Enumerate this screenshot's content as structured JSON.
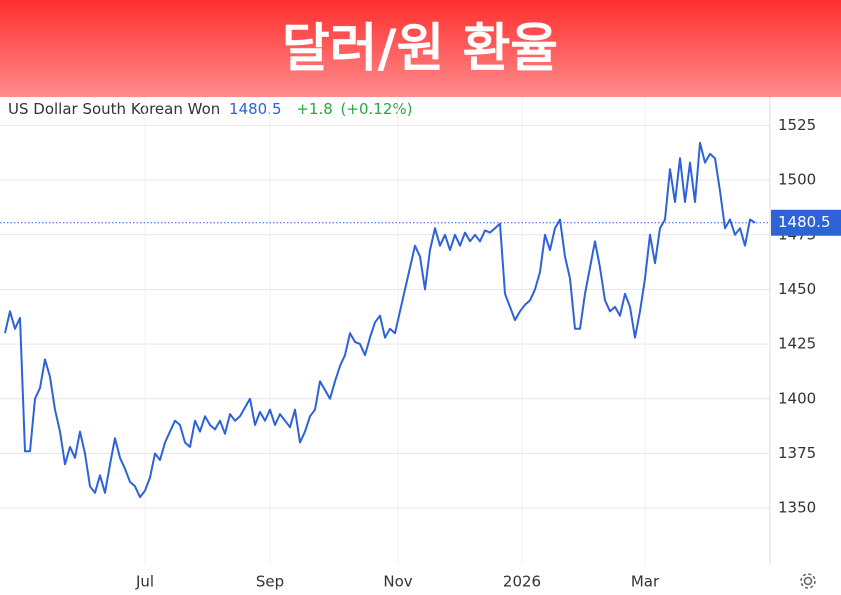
{
  "chart_data": {
    "type": "line",
    "title": "달러/원 환율",
    "instrument": "US Dollar South Korean Won",
    "price": "1480.5",
    "change": "+1.8",
    "change_pct": "(+0.12%)",
    "last_value": 1480.5,
    "series": [
      {
        "name": "US Dollar South Korean Won",
        "color": "#2d62d8",
        "values": [
          1430,
          1440,
          1432,
          1437,
          1376,
          1376,
          1400,
          1405,
          1418,
          1410,
          1395,
          1385,
          1370,
          1378,
          1373,
          1385,
          1375,
          1360,
          1357,
          1365,
          1357,
          1370,
          1382,
          1373,
          1368,
          1362,
          1360,
          1355,
          1358,
          1364,
          1375,
          1372,
          1380,
          1385,
          1390,
          1388,
          1380,
          1378,
          1390,
          1385,
          1392,
          1388,
          1386,
          1390,
          1384,
          1393,
          1390,
          1392,
          1396,
          1400,
          1388,
          1394,
          1390,
          1395,
          1388,
          1393,
          1390,
          1387,
          1395,
          1380,
          1385,
          1392,
          1395,
          1408,
          1404,
          1400,
          1408,
          1415,
          1420,
          1430,
          1426,
          1425,
          1420,
          1428,
          1435,
          1438,
          1428,
          1432,
          1430,
          1440,
          1450,
          1460,
          1470,
          1465,
          1450,
          1468,
          1478,
          1470,
          1475,
          1468,
          1475,
          1470,
          1476,
          1472,
          1475,
          1472,
          1477,
          1476,
          1478,
          1480,
          1448,
          1442,
          1436,
          1440,
          1443,
          1445,
          1450,
          1458,
          1475,
          1468,
          1478,
          1482,
          1465,
          1455,
          1432,
          1432,
          1448,
          1460,
          1472,
          1460,
          1445,
          1440,
          1442,
          1438,
          1448,
          1442,
          1428,
          1440,
          1455,
          1475,
          1462,
          1478,
          1482,
          1505,
          1490,
          1510,
          1490,
          1508,
          1490,
          1517,
          1508,
          1512,
          1510,
          1495,
          1478,
          1482,
          1475,
          1478,
          1470,
          1482,
          1480.5
        ]
      }
    ],
    "xlim": [
      0,
      153
    ],
    "xticks": [
      {
        "value": 28,
        "label": "Jul"
      },
      {
        "value": 53,
        "label": "Sep"
      },
      {
        "value": 78.6,
        "label": "Nov"
      },
      {
        "value": 103.4,
        "label": "2026"
      },
      {
        "value": 128,
        "label": "Mar"
      }
    ],
    "ylim": [
      1324,
      1538
    ],
    "yticks": [
      1350,
      1375,
      1400,
      1425,
      1450,
      1475,
      1500,
      1525
    ],
    "grid": true
  }
}
